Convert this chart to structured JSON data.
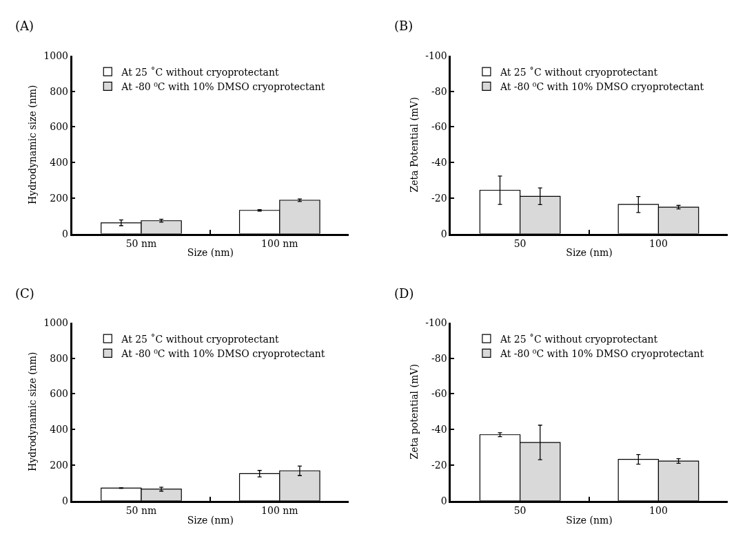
{
  "chart_data": [
    {
      "type": "bar",
      "title": "(A)",
      "xlabel": "Size (nm)",
      "ylabel": "Hydrodynamic size (nm)",
      "categories": [
        "50 nm",
        "100 nm"
      ],
      "ylim": [
        0,
        1000
      ],
      "yticks": [
        0,
        200,
        400,
        600,
        800,
        1000
      ],
      "legend": "top left",
      "grid": false,
      "series": [
        {
          "name": "At 25 ˚C without cryoprotectant",
          "color": "#ffffff",
          "values": [
            61,
            131
          ],
          "errors": [
            16,
            4
          ]
        },
        {
          "name": "At -80 ⁰C with 10% DMSO cryoprotectant",
          "color": "#d9d9d9",
          "values": [
            73,
            188
          ],
          "errors": [
            8,
            7
          ]
        }
      ]
    },
    {
      "type": "bar",
      "title": "(B)",
      "xlabel": "Size (nm)",
      "ylabel": "Zeta Potential (mV)",
      "categories": [
        "50",
        "100"
      ],
      "ylim": [
        0,
        -100
      ],
      "yticks": [
        0,
        -20,
        -40,
        -60,
        -80,
        -100
      ],
      "legend": "top left",
      "grid": false,
      "series": [
        {
          "name": "At 25 ˚C without cryoprotectant",
          "color": "#ffffff",
          "values": [
            -24.4,
            -16.4
          ],
          "errors": [
            8,
            4.5
          ]
        },
        {
          "name": "At -80 ⁰C with 10% DMSO cryoprotectant",
          "color": "#d9d9d9",
          "values": [
            -21,
            -14.9
          ],
          "errors": [
            4.7,
            1
          ]
        }
      ]
    },
    {
      "type": "bar",
      "title": "(C)",
      "xlabel": "Size (nm)",
      "ylabel": "Hydrodynamic size (nm)",
      "categories": [
        "50 nm",
        "100 nm"
      ],
      "ylim": [
        0,
        1000
      ],
      "yticks": [
        0,
        200,
        400,
        600,
        800,
        1000
      ],
      "legend": "top left",
      "grid": false,
      "series": [
        {
          "name": "At 25 ˚C without cryoprotectant",
          "color": "#ffffff",
          "values": [
            71,
            152
          ],
          "errors": [
            2,
            18
          ]
        },
        {
          "name": "At -80 ⁰C with 10% DMSO cryoprotectant",
          "color": "#d9d9d9",
          "values": [
            65,
            168
          ],
          "errors": [
            11,
            27
          ]
        }
      ]
    },
    {
      "type": "bar",
      "title": "(D)",
      "xlabel": "Size (nm)",
      "ylabel": "Zeta potential (mV)",
      "categories": [
        "50",
        "100"
      ],
      "ylim": [
        0,
        -100
      ],
      "yticks": [
        0,
        -20,
        -40,
        -60,
        -80,
        -100
      ],
      "legend": "top left",
      "grid": false,
      "series": [
        {
          "name": "At 25 ˚C without cryoprotectant",
          "color": "#ffffff",
          "values": [
            -37.1,
            -23.2
          ],
          "errors": [
            1.1,
            2.7
          ]
        },
        {
          "name": "At -80 ⁰C with 10% DMSO cryoprotectant",
          "color": "#d9d9d9",
          "values": [
            -32.7,
            -22.3
          ],
          "errors": [
            9.7,
            1.3
          ]
        }
      ]
    }
  ]
}
